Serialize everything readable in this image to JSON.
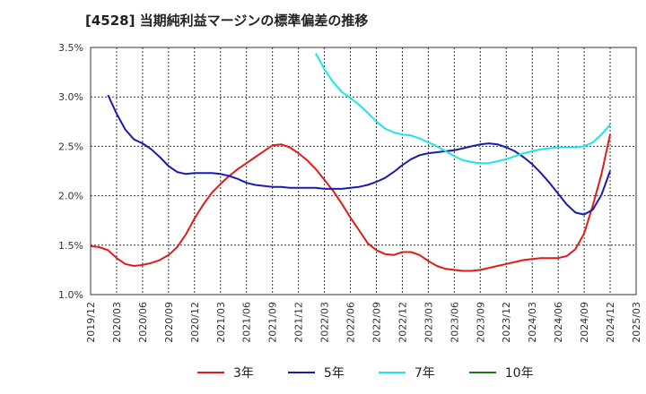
{
  "chart_data": {
    "type": "line",
    "title": "[4528]  当期純利益マージンの標準偏差の推移",
    "xlabel": "",
    "ylabel": "",
    "ylim": [
      1.0,
      3.5
    ],
    "y_ticks": [
      "1.0%",
      "1.5%",
      "2.0%",
      "2.5%",
      "3.0%",
      "3.5%"
    ],
    "x_ticks": [
      "2019/12",
      "2020/03",
      "2020/06",
      "2020/09",
      "2020/12",
      "2021/03",
      "2021/06",
      "2021/09",
      "2021/12",
      "2022/03",
      "2022/06",
      "2022/09",
      "2022/12",
      "2023/03",
      "2023/06",
      "2023/09",
      "2023/12",
      "2024/03",
      "2024/06",
      "2024/09",
      "2024/12",
      "2025/03"
    ],
    "grid": true,
    "legend_position": "bottom",
    "series": [
      {
        "name": "3年",
        "color": "#e31a1c",
        "points": [
          [
            "2019/12",
            1.49
          ],
          [
            "2020/01",
            1.48
          ],
          [
            "2020/02",
            1.45
          ],
          [
            "2020/03",
            1.37
          ],
          [
            "2020/04",
            1.31
          ],
          [
            "2020/05",
            1.29
          ],
          [
            "2020/06",
            1.3
          ],
          [
            "2020/07",
            1.32
          ],
          [
            "2020/08",
            1.35
          ],
          [
            "2020/09",
            1.4
          ],
          [
            "2020/10",
            1.48
          ],
          [
            "2020/11",
            1.61
          ],
          [
            "2020/12",
            1.77
          ],
          [
            "2021/01",
            1.91
          ],
          [
            "2021/02",
            2.03
          ],
          [
            "2021/03",
            2.12
          ],
          [
            "2021/04",
            2.2
          ],
          [
            "2021/05",
            2.27
          ],
          [
            "2021/06",
            2.33
          ],
          [
            "2021/07",
            2.39
          ],
          [
            "2021/08",
            2.45
          ],
          [
            "2021/09",
            2.51
          ],
          [
            "2021/10",
            2.52
          ],
          [
            "2021/11",
            2.49
          ],
          [
            "2021/12",
            2.43
          ],
          [
            "2022/01",
            2.36
          ],
          [
            "2022/02",
            2.27
          ],
          [
            "2022/03",
            2.16
          ],
          [
            "2022/04",
            2.05
          ],
          [
            "2022/05",
            1.92
          ],
          [
            "2022/06",
            1.78
          ],
          [
            "2022/07",
            1.65
          ],
          [
            "2022/08",
            1.52
          ],
          [
            "2022/09",
            1.45
          ],
          [
            "2022/10",
            1.41
          ],
          [
            "2022/11",
            1.4
          ],
          [
            "2022/12",
            1.43
          ],
          [
            "2023/01",
            1.43
          ],
          [
            "2023/02",
            1.4
          ],
          [
            "2023/03",
            1.34
          ],
          [
            "2023/04",
            1.29
          ],
          [
            "2023/05",
            1.26
          ],
          [
            "2023/06",
            1.25
          ],
          [
            "2023/07",
            1.24
          ],
          [
            "2023/08",
            1.24
          ],
          [
            "2023/09",
            1.25
          ],
          [
            "2023/10",
            1.27
          ],
          [
            "2023/11",
            1.29
          ],
          [
            "2023/12",
            1.31
          ],
          [
            "2024/01",
            1.33
          ],
          [
            "2024/02",
            1.35
          ],
          [
            "2024/03",
            1.36
          ],
          [
            "2024/04",
            1.37
          ],
          [
            "2024/05",
            1.37
          ],
          [
            "2024/06",
            1.37
          ],
          [
            "2024/07",
            1.39
          ],
          [
            "2024/08",
            1.46
          ],
          [
            "2024/09",
            1.62
          ],
          [
            "2024/10",
            1.9
          ],
          [
            "2024/11",
            2.22
          ],
          [
            "2024/12",
            2.62
          ]
        ]
      },
      {
        "name": "5年",
        "color": "#1a1ab4",
        "points": [
          [
            "2020/02",
            3.02
          ],
          [
            "2020/03",
            2.83
          ],
          [
            "2020/04",
            2.67
          ],
          [
            "2020/05",
            2.57
          ],
          [
            "2020/06",
            2.53
          ],
          [
            "2020/07",
            2.47
          ],
          [
            "2020/08",
            2.39
          ],
          [
            "2020/09",
            2.3
          ],
          [
            "2020/10",
            2.24
          ],
          [
            "2020/11",
            2.22
          ],
          [
            "2020/12",
            2.23
          ],
          [
            "2021/01",
            2.23
          ],
          [
            "2021/02",
            2.23
          ],
          [
            "2021/03",
            2.22
          ],
          [
            "2021/04",
            2.2
          ],
          [
            "2021/05",
            2.17
          ],
          [
            "2021/06",
            2.13
          ],
          [
            "2021/07",
            2.11
          ],
          [
            "2021/08",
            2.1
          ],
          [
            "2021/09",
            2.09
          ],
          [
            "2021/10",
            2.09
          ],
          [
            "2021/11",
            2.08
          ],
          [
            "2021/12",
            2.08
          ],
          [
            "2022/01",
            2.08
          ],
          [
            "2022/02",
            2.08
          ],
          [
            "2022/03",
            2.07
          ],
          [
            "2022/04",
            2.07
          ],
          [
            "2022/05",
            2.07
          ],
          [
            "2022/06",
            2.08
          ],
          [
            "2022/07",
            2.09
          ],
          [
            "2022/08",
            2.11
          ],
          [
            "2022/09",
            2.14
          ],
          [
            "2022/10",
            2.18
          ],
          [
            "2022/11",
            2.24
          ],
          [
            "2022/12",
            2.31
          ],
          [
            "2023/01",
            2.37
          ],
          [
            "2023/02",
            2.41
          ],
          [
            "2023/03",
            2.43
          ],
          [
            "2023/04",
            2.44
          ],
          [
            "2023/05",
            2.45
          ],
          [
            "2023/06",
            2.46
          ],
          [
            "2023/07",
            2.48
          ],
          [
            "2023/08",
            2.5
          ],
          [
            "2023/09",
            2.52
          ],
          [
            "2023/10",
            2.53
          ],
          [
            "2023/11",
            2.52
          ],
          [
            "2023/12",
            2.49
          ],
          [
            "2024/01",
            2.45
          ],
          [
            "2024/02",
            2.39
          ],
          [
            "2024/03",
            2.32
          ],
          [
            "2024/04",
            2.23
          ],
          [
            "2024/05",
            2.13
          ],
          [
            "2024/06",
            2.02
          ],
          [
            "2024/07",
            1.91
          ],
          [
            "2024/08",
            1.83
          ],
          [
            "2024/09",
            1.81
          ],
          [
            "2024/10",
            1.86
          ],
          [
            "2024/11",
            2.01
          ],
          [
            "2024/12",
            2.25
          ]
        ]
      },
      {
        "name": "7年",
        "color": "#1ae6e6",
        "points": [
          [
            "2022/02",
            3.44
          ],
          [
            "2022/03",
            3.28
          ],
          [
            "2022/04",
            3.15
          ],
          [
            "2022/05",
            3.05
          ],
          [
            "2022/06",
            2.99
          ],
          [
            "2022/07",
            2.92
          ],
          [
            "2022/08",
            2.84
          ],
          [
            "2022/09",
            2.75
          ],
          [
            "2022/10",
            2.68
          ],
          [
            "2022/11",
            2.64
          ],
          [
            "2022/12",
            2.62
          ],
          [
            "2023/01",
            2.61
          ],
          [
            "2023/02",
            2.58
          ],
          [
            "2023/03",
            2.54
          ],
          [
            "2023/04",
            2.5
          ],
          [
            "2023/05",
            2.45
          ],
          [
            "2023/06",
            2.4
          ],
          [
            "2023/07",
            2.36
          ],
          [
            "2023/08",
            2.34
          ],
          [
            "2023/09",
            2.33
          ],
          [
            "2023/10",
            2.33
          ],
          [
            "2023/11",
            2.35
          ],
          [
            "2023/12",
            2.37
          ],
          [
            "2024/01",
            2.4
          ],
          [
            "2024/02",
            2.43
          ],
          [
            "2024/03",
            2.45
          ],
          [
            "2024/04",
            2.47
          ],
          [
            "2024/05",
            2.48
          ],
          [
            "2024/06",
            2.49
          ],
          [
            "2024/07",
            2.49
          ],
          [
            "2024/08",
            2.49
          ],
          [
            "2024/09",
            2.5
          ],
          [
            "2024/10",
            2.54
          ],
          [
            "2024/11",
            2.62
          ],
          [
            "2024/12",
            2.72
          ]
        ]
      },
      {
        "name": "10年",
        "color": "#1a7a1a",
        "points": []
      }
    ]
  }
}
